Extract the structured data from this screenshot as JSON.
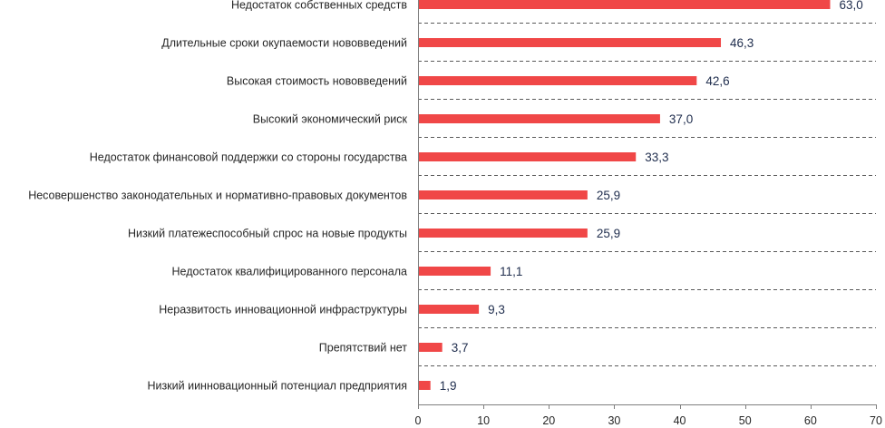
{
  "chart_data": {
    "type": "bar",
    "orientation": "horizontal",
    "title": "",
    "xlabel": "",
    "ylabel": "",
    "xlim": [
      0,
      70
    ],
    "x_ticks": [
      0,
      10,
      20,
      30,
      40,
      50,
      60,
      70
    ],
    "grid": "horizontal dashed separators",
    "bar_color": "#f04747",
    "value_label_color": "#1f2d4d",
    "categories": [
      "Недостаток собственных средств",
      "Длительные сроки окупаемости нововведений",
      "Высокая стоимость нововведений",
      "Высокий экономический риск",
      "Недостаток финансовой поддержки со стороны государства",
      "Несовершенство законодательных и нормативно-правовых документов",
      "Низкий платежеспособный спрос на новые продукты",
      "Недостаток квалифицированного персонала",
      "Неразвитость инновационной инфраструктуры",
      "Препятствий нет",
      "Низкий иинновационный потенциал предприятия"
    ],
    "values": [
      63.0,
      46.3,
      42.6,
      37.0,
      33.3,
      25.9,
      25.9,
      11.1,
      9.3,
      3.7,
      1.9
    ],
    "value_labels": [
      "63,0",
      "46,3",
      "42,6",
      "37,0",
      "33,3",
      "25,9",
      "25,9",
      "11,1",
      "9,3",
      "3,7",
      "1,9"
    ]
  }
}
